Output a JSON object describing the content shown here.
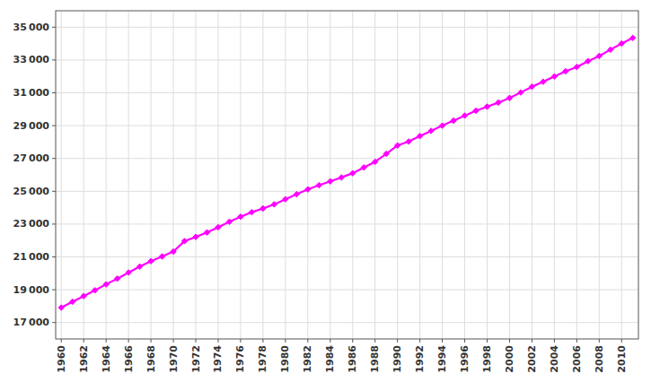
{
  "chart_data": {
    "type": "line",
    "x": [
      1960,
      1961,
      1962,
      1963,
      1964,
      1965,
      1966,
      1967,
      1968,
      1969,
      1970,
      1971,
      1972,
      1973,
      1974,
      1975,
      1976,
      1977,
      1978,
      1979,
      1980,
      1981,
      1982,
      1983,
      1984,
      1985,
      1986,
      1987,
      1988,
      1989,
      1990,
      1991,
      1992,
      1993,
      1994,
      1995,
      1996,
      1997,
      1998,
      1999,
      2000,
      2001,
      2002,
      2003,
      2004,
      2005,
      2006,
      2007,
      2008,
      2009,
      2010,
      2011
    ],
    "values": [
      17909,
      18271,
      18614,
      18963,
      19325,
      19678,
      20048,
      20412,
      20744,
      21028,
      21324,
      21962,
      22218,
      22493,
      22808,
      23143,
      23450,
      23726,
      23954,
      24202,
      24516,
      24820,
      25117,
      25367,
      25607,
      25842,
      26101,
      26449,
      26795,
      27282,
      27791,
      28031,
      28366,
      28683,
      28999,
      29302,
      29611,
      29907,
      30157,
      30404,
      30689,
      31021,
      31373,
      31676,
      31995,
      32312,
      32576,
      32931,
      33245,
      33628,
      34005,
      34342
    ],
    "color": "#FF00FF",
    "marker": "diamond",
    "xlim": [
      1959.5,
      2011.5
    ],
    "xticks": [
      1960,
      1962,
      1964,
      1966,
      1968,
      1970,
      1972,
      1974,
      1976,
      1978,
      1980,
      1982,
      1984,
      1986,
      1988,
      1990,
      1992,
      1994,
      1996,
      1998,
      2000,
      2002,
      2004,
      2006,
      2008,
      2010
    ],
    "ylim": [
      16000,
      36000
    ],
    "yticks": [
      {
        "value": 17000,
        "label": "17 000"
      },
      {
        "value": 19000,
        "label": "19 000"
      },
      {
        "value": 21000,
        "label": "21 000"
      },
      {
        "value": 23000,
        "label": "23 000"
      },
      {
        "value": 25000,
        "label": "25 000"
      },
      {
        "value": 27000,
        "label": "27 000"
      },
      {
        "value": 29000,
        "label": "29 000"
      },
      {
        "value": 31000,
        "label": "31 000"
      },
      {
        "value": 33000,
        "label": "33 000"
      },
      {
        "value": 35000,
        "label": "35 000"
      }
    ],
    "grid": true
  }
}
